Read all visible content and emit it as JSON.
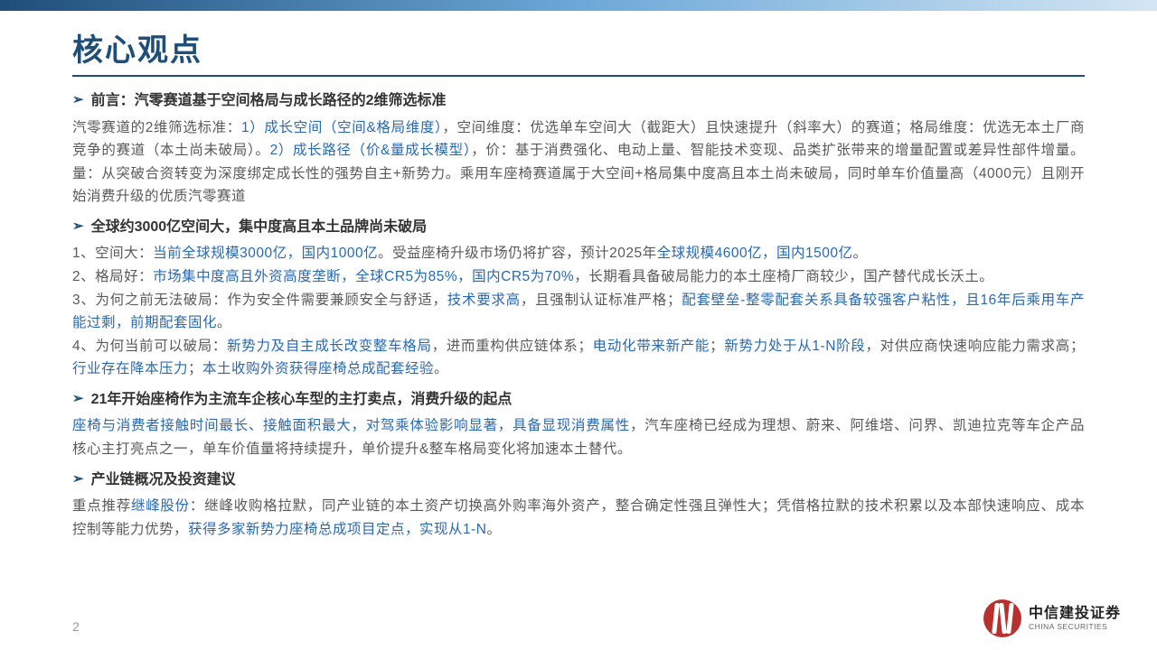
{
  "title": "核心观点",
  "pageNum": "2",
  "logo": {
    "cn": "中信建投证券",
    "en": "CHINA SECURITIES"
  },
  "colors": {
    "brand": "#1f4e79",
    "highlight": "#2969b0",
    "bodyText": "#595959",
    "logoRed": "#b8312f"
  },
  "s1": {
    "title": "前言：汽零赛道基于空间格局与成长路径的2维筛选标准",
    "p1a": "汽零赛道的2维筛选标准：",
    "p1b": "1）成长空间（空间&格局维度）",
    "p1c": "，空间维度：优选单车空间大（截距大）且快速提升（斜率大）的赛道；格局维度：优选无本土厂商竞争的赛道（本土尚未破局）。",
    "p1d": "2）成长路径（价&量成长模型）",
    "p1e": "，价：基于消费强化、电动上量、智能技术变现、品类扩张带来的增量配置或差异性部件增量。量：从突破合资转变为深度绑定成长性的强势自主+新势力。乘用车座椅赛道属于大空间+格局集中度高且本土尚未破局，同时单车价值量高（4000元）且刚开始消费升级的优质汽零赛道"
  },
  "s2": {
    "title": "全球约3000亿空间大，集中度高且本土品牌尚未破局",
    "l1a": "1、空间大：",
    "l1b": "当前全球规模3000亿，国内1000亿",
    "l1c": "。受益座椅升级市场仍将扩容，预计2025年",
    "l1d": "全球规模4600亿，国内1500亿",
    "l1e": "。",
    "l2a": "2、格局好：",
    "l2b": "市场集中度高且外资高度垄断，全球CR5为85%，国内CR5为70%",
    "l2c": "，长期看具备破局能力的本土座椅厂商较少，国产替代成长沃土。",
    "l3a": "3、为何之前无法破局：作为安全件需要兼顾安全与舒适，",
    "l3b": "技术要求高",
    "l3c": "，且强制认证标准严格；",
    "l3d": "配套壁垒-整零配套关系具备较强客户粘性，且16年后乘用车产能过剩，前期配套固化",
    "l3e": "。",
    "l4a": "4、为何当前可以破局：",
    "l4b": "新势力及自主成长改变整车格局",
    "l4c": "，进而重构供应链体系；",
    "l4d": "电动化带来新产能",
    "l4e": "；",
    "l4f": "新势力处于从1-N阶段",
    "l4g": "，对供应商快速响应能力需求高；",
    "l4h": "行业存在降本压力",
    "l4i": "；",
    "l4j": "本土收购外资获得座椅总成配套经验",
    "l4k": "。"
  },
  "s3": {
    "title": "21年开始座椅作为主流车企核心车型的主打卖点，消费升级的起点",
    "pa": "座椅与消费者接触时间最长、接触面积最大，对驾乘体验影响显著，具备显现消费属性",
    "pb": "，汽车座椅已经成为理想、蔚来、阿维塔、问界、凯迪拉克等车企产品核心主打亮点之一，单车价值量将持续提升，单价提升&整车格局变化将加速本土替代。"
  },
  "s4": {
    "title": "产业链概况及投资建议",
    "pa": "重点推荐",
    "pb": "继峰股份",
    "pc": "：继峰收购格拉默，同产业链的本土资产切换高外购率海外资产，整合确定性强且弹性大；凭借格拉默的技术积累以及本部快速响应、成本控制等能力优势，",
    "pd": "获得多家新势力座椅总成项目定点，实现从1-N",
    "pe": "。"
  }
}
